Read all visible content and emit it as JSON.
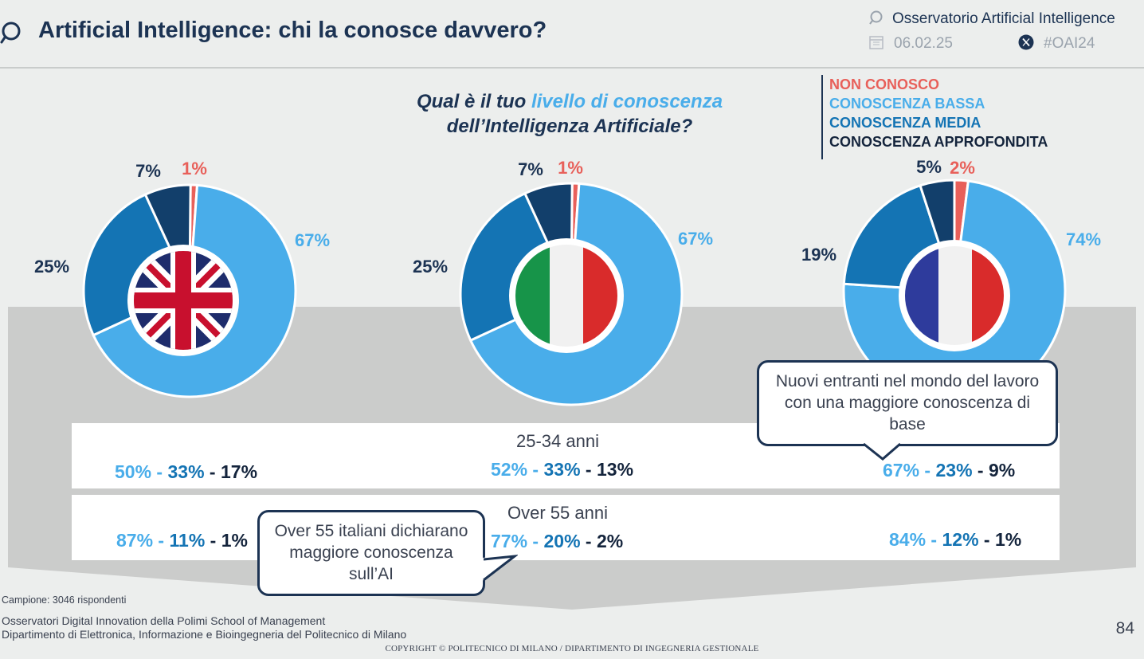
{
  "header": {
    "title": "Artificial Intelligence: chi la conosce davvero?",
    "source_label": "Osservatorio Artificial Intelligence",
    "date": "06.02.25",
    "hashtag": "#OAI24"
  },
  "question": {
    "part1": "Qual è il tuo ",
    "highlight": "livello di conoscenza",
    "part2": "dell’Intelligenza Artificiale?"
  },
  "legend": [
    {
      "label": "NON CONOSCO",
      "color": "#e8605a"
    },
    {
      "label": "CONOSCENZA BASSA",
      "color": "#49adea"
    },
    {
      "label": "CONOSCENZA MEDIA",
      "color": "#1474b4"
    },
    {
      "label": "CONOSCENZA APPROFONDITA",
      "color": "#14243c"
    }
  ],
  "colors": {
    "non_conosco": "#e8605a",
    "bassa": "#49adea",
    "media": "#1474b4",
    "approfondita": "#123f6b",
    "band": "#cbcccb"
  },
  "chart_data": [
    {
      "type": "pie",
      "flag": "uk-flag",
      "categories": [
        "NON CONOSCO",
        "CONOSCENZA BASSA",
        "CONOSCENZA MEDIA",
        "CONOSCENZA APPROFONDITA"
      ],
      "values": [
        1,
        67,
        25,
        7
      ],
      "labels": [
        "1%",
        "67%",
        "25%",
        "7%"
      ]
    },
    {
      "type": "pie",
      "flag": "italy-flag",
      "categories": [
        "NON CONOSCO",
        "CONOSCENZA BASSA",
        "CONOSCENZA MEDIA",
        "CONOSCENZA APPROFONDITA"
      ],
      "values": [
        1,
        67,
        25,
        7
      ],
      "labels": [
        "1%",
        "67%",
        "25%",
        "7%"
      ]
    },
    {
      "type": "pie",
      "flag": "france-flag",
      "categories": [
        "NON CONOSCO",
        "CONOSCENZA BASSA",
        "CONOSCENZA MEDIA",
        "CONOSCENZA APPROFONDITA"
      ],
      "values": [
        2,
        74,
        19,
        5
      ],
      "labels": [
        "2%",
        "74%",
        "19%",
        "5%"
      ]
    }
  ],
  "age_rows": [
    {
      "title": "25-34 anni",
      "stats": [
        {
          "low": "50%",
          "mid": "33%",
          "high": "17%"
        },
        {
          "low": "52%",
          "mid": "33%",
          "high": "13%"
        },
        {
          "low": "67%",
          "mid": "23%",
          "high": "9%"
        }
      ]
    },
    {
      "title": "Over 55 anni",
      "stats": [
        {
          "low": "87%",
          "mid": "11%",
          "high": "1%"
        },
        {
          "low": "77%",
          "mid": "20%",
          "high": "2%"
        },
        {
          "low": "84%",
          "mid": "12%",
          "high": "1%"
        }
      ]
    }
  ],
  "sep": " - ",
  "callouts": {
    "france": "Nuovi entranti nel mondo del lavoro con una maggiore conoscenza di base",
    "italy": "Over 55 italiani dichiarano maggiore conoscenza sull’AI"
  },
  "footer": {
    "sample": "Campione: 3046 rispondenti",
    "line1": "Osservatori Digital Innovation della Polimi School of Management",
    "line2": "Dipartimento di Elettronica, Informazione e Bioingegneria del Politecnico di Milano",
    "copyright": "COPYRIGHT © POLITECNICO DI MILANO / DIPARTIMENTO DI INGEGNERIA GESTIONALE",
    "page": "84"
  }
}
